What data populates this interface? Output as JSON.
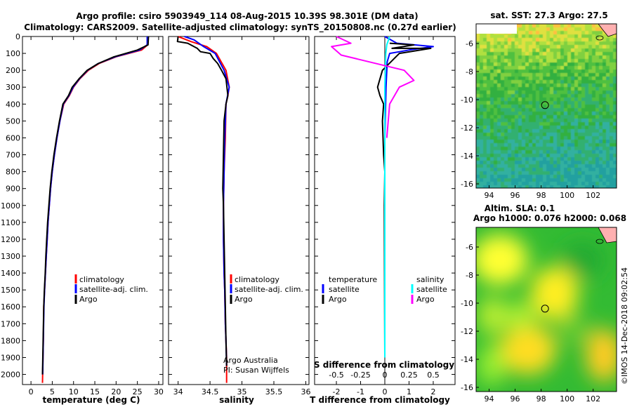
{
  "header": {
    "title_line1": "Argo profile: csiro 5903949_114 08-Aug-2015 10.39S 98.301E (DM data)",
    "title_line2": "Climatology: CARS2009. Satellite-adjusted climatology: synTS_20150808.nc (0.27d earlier)"
  },
  "colors": {
    "climatology": "#ff0000",
    "satellite": "#0000ff",
    "argo": "#000000",
    "satellite_salinity": "#00ffff",
    "argo_salinity_diff": "#ff00ff"
  },
  "chart_data": [
    {
      "type": "line",
      "name": "temperature-profile",
      "xlabel": "temperature (deg C)",
      "ylabel": "",
      "xlim": [
        -2,
        31
      ],
      "ylim": [
        2060,
        0
      ],
      "xticks": [
        0,
        5,
        10,
        15,
        20,
        25,
        30
      ],
      "yticks": [
        0,
        100,
        200,
        300,
        400,
        500,
        600,
        700,
        800,
        900,
        1000,
        1100,
        1200,
        1300,
        1400,
        1500,
        1600,
        1700,
        1800,
        1900,
        2000
      ],
      "legend": [
        "climatology",
        "satellite-adj. clim.",
        "Argo"
      ],
      "series": [
        {
          "name": "climatology",
          "color": "#ff0000",
          "x": [
            27.5,
            27.4,
            26,
            20,
            16,
            13.5,
            11.5,
            10,
            9,
            7.7,
            6.8,
            6.1,
            5.5,
            5,
            4.6,
            4.3,
            4,
            3.8,
            3.6,
            3.4,
            3.2,
            3,
            2.9,
            2.7
          ],
          "y": [
            0,
            50,
            80,
            120,
            160,
            200,
            250,
            300,
            350,
            400,
            500,
            600,
            700,
            800,
            900,
            1000,
            1100,
            1200,
            1300,
            1400,
            1500,
            1600,
            1800,
            2050
          ]
        },
        {
          "name": "satellite-adj. clim.",
          "color": "#0000ff",
          "x": [
            27.3,
            27.3,
            25.5,
            19.8,
            15.8,
            13.3,
            11.4,
            9.9,
            8.9,
            7.6,
            6.8,
            6.1,
            5.5,
            5,
            4.6,
            4.3,
            4,
            3.8,
            3.6,
            3.4,
            3.2,
            3.05,
            2.9,
            2.75
          ],
          "y": [
            0,
            50,
            80,
            120,
            160,
            200,
            250,
            300,
            350,
            400,
            500,
            600,
            700,
            800,
            900,
            1000,
            1100,
            1200,
            1300,
            1400,
            1500,
            1600,
            1800,
            2000
          ]
        },
        {
          "name": "Argo",
          "color": "#000000",
          "x": [
            27.6,
            27.5,
            25,
            19.5,
            15.8,
            13.2,
            11.3,
            9.7,
            8.8,
            7.5,
            6.7,
            6,
            5.4,
            4.9,
            4.5,
            4.2,
            3.9,
            3.7,
            3.5,
            3.35,
            3.15,
            3,
            2.85,
            2.7
          ],
          "y": [
            0,
            50,
            80,
            120,
            160,
            200,
            250,
            300,
            350,
            400,
            500,
            600,
            700,
            800,
            900,
            1000,
            1100,
            1200,
            1300,
            1400,
            1500,
            1600,
            1800,
            2000
          ]
        }
      ]
    },
    {
      "type": "line",
      "name": "salinity-profile",
      "xlabel": "salinity",
      "xlim": [
        33.85,
        36.05
      ],
      "ylim": [
        2060,
        0
      ],
      "xticks": [
        34,
        34.5,
        35,
        35.5,
        36
      ],
      "legend": [
        "climatology",
        "satellite-adj. clim.",
        "Argo"
      ],
      "annotations": [
        "Argo Australia",
        "PI: Susan Wijffels"
      ],
      "series": [
        {
          "name": "climatology",
          "color": "#ff0000",
          "x": [
            34.0,
            34.2,
            34.45,
            34.6,
            34.75,
            34.8,
            34.78,
            34.75,
            34.74,
            34.72,
            34.71,
            34.71,
            34.72,
            34.73,
            34.74,
            34.75,
            34.76,
            34.76
          ],
          "y": [
            0,
            30,
            60,
            100,
            200,
            300,
            350,
            400,
            600,
            800,
            1000,
            1200,
            1400,
            1500,
            1700,
            1800,
            1900,
            2050
          ]
        },
        {
          "name": "satellite-adj. clim.",
          "color": "#0000ff",
          "x": [
            34.1,
            34.25,
            34.4,
            34.58,
            34.72,
            34.8,
            34.77,
            34.75,
            34.73,
            34.72,
            34.71,
            34.71,
            34.72,
            34.73,
            34.74,
            34.75,
            34.76
          ],
          "y": [
            0,
            20,
            60,
            100,
            200,
            300,
            360,
            400,
            600,
            800,
            1000,
            1200,
            1400,
            1500,
            1700,
            1800,
            1950
          ]
        },
        {
          "name": "Argo",
          "color": "#000000",
          "x": [
            34.0,
            33.99,
            34.15,
            34.3,
            34.35,
            34.5,
            34.55,
            34.62,
            34.68,
            34.75,
            34.78,
            34.75,
            34.72,
            34.71,
            34.7,
            34.71,
            34.72,
            34.73,
            34.74,
            34.75,
            34.76
          ],
          "y": [
            0,
            30,
            40,
            70,
            90,
            100,
            130,
            160,
            200,
            250,
            350,
            400,
            500,
            700,
            900,
            1000,
            1200,
            1400,
            1600,
            1800,
            1950
          ]
        }
      ]
    },
    {
      "type": "line",
      "name": "difference-profile",
      "xlabel": "T difference from climatology",
      "xlabel_secondary": "S difference from climatology",
      "xlim": [
        -2.9,
        2.9
      ],
      "ylim": [
        2060,
        0
      ],
      "xticks": [
        -2,
        -1,
        0,
        1,
        2
      ],
      "xticks_secondary": [
        -0.5,
        -0.25,
        0,
        0.25,
        0.5
      ],
      "xtick_labels_secondary": [
        "-0.5",
        "-0.25",
        "0",
        "0.25",
        "0.5"
      ],
      "legend_temperature_header": "temperature",
      "legend_salinity_header": "salinity",
      "legend_temperature": [
        "satellite",
        "Argo"
      ],
      "legend_salinity": [
        "satellite",
        "Argo"
      ],
      "series": [
        {
          "name": "temperature satellite",
          "color": "#0000ff",
          "x": [
            0,
            0.5,
            2,
            1,
            0.2,
            0.1,
            0.05,
            0,
            0,
            0
          ],
          "y": [
            0,
            40,
            60,
            80,
            100,
            150,
            300,
            600,
            1000,
            1900
          ]
        },
        {
          "name": "temperature Argo",
          "color": "#000000",
          "x": [
            0.2,
            1.2,
            0.3,
            1.9,
            0.6,
            -0.1,
            -0.3,
            -0.2,
            -0.05,
            -0.1,
            -0.05,
            0,
            -0.02,
            0
          ],
          "y": [
            40,
            50,
            70,
            70,
            100,
            200,
            300,
            350,
            400,
            500,
            700,
            800,
            1000,
            1900
          ]
        },
        {
          "name": "salinity satellite",
          "color": "#00ffff",
          "x": [
            0.05,
            0.02,
            0.01,
            0,
            0,
            0
          ],
          "y": [
            0,
            50,
            100,
            300,
            1000,
            1900
          ]
        },
        {
          "name": "salinity Argo",
          "color": "#ff00ff",
          "x": [
            -0.5,
            -0.35,
            -0.55,
            -0.45,
            0.2,
            0.3,
            0.15,
            0.05,
            0.02
          ],
          "y": [
            0,
            40,
            60,
            110,
            200,
            260,
            300,
            400,
            600
          ]
        }
      ]
    },
    {
      "type": "heatmap",
      "name": "sst-map",
      "title": "sat. SST: 27.3 Argo: 27.5",
      "xlim": [
        93,
        103.8
      ],
      "ylim": [
        -16.3,
        -4.6
      ],
      "xticks": [
        94,
        96,
        98,
        100,
        102
      ],
      "yticks": [
        -6,
        -8,
        -10,
        -12,
        -14,
        -16
      ]
    },
    {
      "type": "heatmap",
      "name": "sla-map",
      "title_line1": "Altim. SLA: 0.1",
      "title_line2": "Argo h1000: 0.076 h2000: 0.068",
      "xlim": [
        93,
        103.8
      ],
      "ylim": [
        -16.3,
        -4.6
      ],
      "xticks": [
        94,
        96,
        98,
        100,
        102
      ],
      "yticks": [
        -6,
        -8,
        -10,
        -12,
        -14,
        -16
      ]
    }
  ],
  "maps": {
    "marker_lon": 98.3,
    "marker_lat": -10.39
  },
  "footer": {
    "credit": "©IMOS 14-Dec-2018 09:02:54"
  }
}
